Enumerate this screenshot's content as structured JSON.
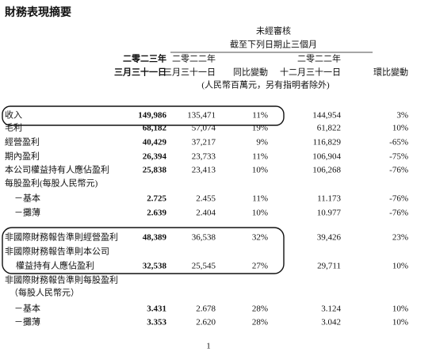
{
  "header": {
    "title": "財務表現摘要",
    "audit": "未經審核",
    "period": "截至下列日期止三個月",
    "unit": "(人民幣百萬元，另有指明者除外)"
  },
  "table": {
    "columns": [
      [
        "二零二三年",
        "三月三十一日"
      ],
      [
        "二零二二年",
        "三月三十一日"
      ],
      [
        "同比變動"
      ],
      [
        "二零二二年",
        "十二月三十一日"
      ],
      [
        "環比變動"
      ]
    ],
    "rows": [
      {
        "label": "收入",
        "values": [
          "149,986",
          "135,471",
          "11%",
          "144,954",
          "3%"
        ]
      },
      {
        "label": "毛利",
        "values": [
          "68,182",
          "57,074",
          "19%",
          "61,822",
          "10%"
        ]
      },
      {
        "label": "經營盈利",
        "values": [
          "40,429",
          "37,217",
          "9%",
          "116,829",
          "-65%"
        ]
      },
      {
        "label": "期內盈利",
        "values": [
          "26,394",
          "23,733",
          "11%",
          "106,904",
          "-75%"
        ]
      },
      {
        "label": "本公司權益持有人應佔盈利",
        "values": [
          "25,838",
          "23,413",
          "10%",
          "106,268",
          "-76%"
        ]
      },
      {
        "label": "每股盈利(每股人民幣元)",
        "values": []
      },
      {
        "label": "－基本",
        "values": [
          "2.725",
          "2.455",
          "11%",
          "11.173",
          "-76%"
        ]
      },
      {
        "label": "－攤薄",
        "values": [
          "2.639",
          "2.404",
          "10%",
          "10.977",
          "-76%"
        ]
      },
      {
        "label": "非國際財務報告準則經營盈利",
        "values": [
          "48,389",
          "36,538",
          "32%",
          "39,426",
          "23%"
        ]
      },
      {
        "label": "非國際財務報告準則本公司",
        "values": []
      },
      {
        "label": "權益持有人應佔盈利",
        "values": [
          "32,538",
          "25,545",
          "27%",
          "29,711",
          "10%"
        ]
      },
      {
        "label": "非國際財務報告準則每股盈利",
        "values": []
      },
      {
        "label": "（每股人民幣元）",
        "values": []
      },
      {
        "label": "－基本",
        "values": [
          "3.431",
          "2.678",
          "28%",
          "3.124",
          "10%"
        ]
      },
      {
        "label": "－攤薄",
        "values": [
          "3.353",
          "2.620",
          "28%",
          "3.042",
          "10%"
        ]
      }
    ]
  },
  "footer": {
    "page": "1"
  }
}
